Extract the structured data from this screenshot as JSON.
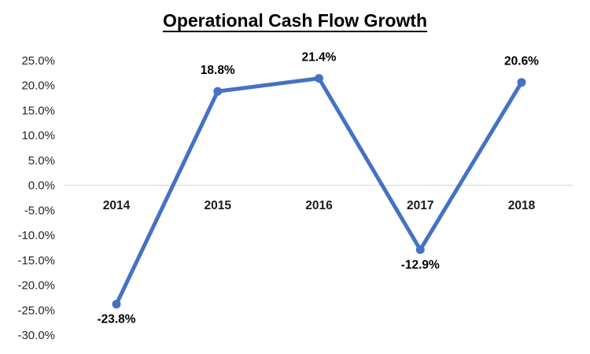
{
  "chart_data": {
    "type": "line",
    "title": "Operational Cash Flow Growth",
    "categories": [
      "2014",
      "2015",
      "2016",
      "2017",
      "2018"
    ],
    "series": [
      {
        "name": "Operational Cash Flow Growth",
        "values": [
          -23.8,
          18.8,
          21.4,
          -12.9,
          20.6
        ]
      }
    ],
    "data_labels": [
      "-23.8%",
      "18.8%",
      "21.4%",
      "-12.9%",
      "20.6%"
    ],
    "y_tick_labels": [
      "25.0%",
      "20.0%",
      "15.0%",
      "10.0%",
      "5.0%",
      "0.0%",
      "-5.0%",
      "-10.0%",
      "-15.0%",
      "-20.0%",
      "-25.0%",
      "-30.0%"
    ],
    "y_tick_values": [
      25,
      20,
      15,
      10,
      5,
      0,
      -5,
      -10,
      -15,
      -20,
      -25,
      -30
    ],
    "ylim": [
      -30,
      25
    ],
    "xlabel": "",
    "ylabel": "",
    "legend": "none",
    "grid": "zero-baseline-only",
    "colors": {
      "line": "#4472C4",
      "marker": "#4472C4",
      "gridline": "#D9D9D9",
      "data_label": "#000000",
      "category_label": "#1A1A1A",
      "tick_label": "#262626",
      "background": "#FFFFFF"
    }
  }
}
